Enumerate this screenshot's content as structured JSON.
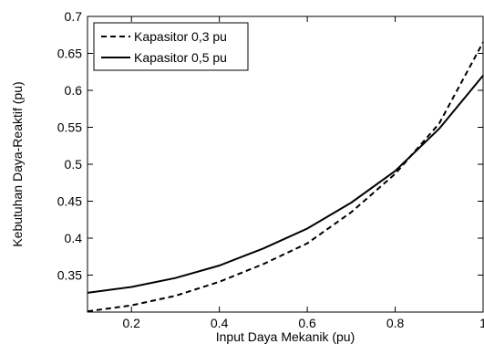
{
  "chart_data": {
    "type": "line",
    "title": "",
    "xlabel": "Input Daya Mekanik (pu)",
    "ylabel": "Kebutuhan Daya-Reaktif  (pu)",
    "xlim": [
      0.1,
      1.0
    ],
    "ylim": [
      0.3,
      0.7
    ],
    "xticks": [
      0.2,
      0.4,
      0.6,
      0.8,
      1
    ],
    "xtick_labels": [
      "0.2",
      "0.4",
      "0.6",
      "0.8",
      "1"
    ],
    "yticks": [
      0.35,
      0.4,
      0.45,
      0.5,
      0.55,
      0.6,
      0.65,
      0.7
    ],
    "ytick_labels": [
      "0.35",
      "0.4",
      "0.45",
      "0.5",
      "0.55",
      "0.6",
      "0.65",
      "0.7"
    ],
    "grid": false,
    "legend_position": "top-left",
    "series": [
      {
        "name": "Kapasitor 0,3 pu",
        "style": "dashed",
        "color": "#000000",
        "x": [
          0.1,
          0.2,
          0.3,
          0.4,
          0.5,
          0.6,
          0.7,
          0.8,
          0.9,
          1.0
        ],
        "y": [
          0.301,
          0.309,
          0.322,
          0.341,
          0.365,
          0.393,
          0.435,
          0.487,
          0.555,
          0.665
        ]
      },
      {
        "name": "Kapasitor 0,5 pu",
        "style": "solid",
        "color": "#000000",
        "x": [
          0.1,
          0.2,
          0.3,
          0.4,
          0.5,
          0.6,
          0.7,
          0.8,
          0.9,
          1.0
        ],
        "y": [
          0.326,
          0.334,
          0.346,
          0.363,
          0.386,
          0.413,
          0.448,
          0.491,
          0.548,
          0.62
        ]
      }
    ]
  }
}
